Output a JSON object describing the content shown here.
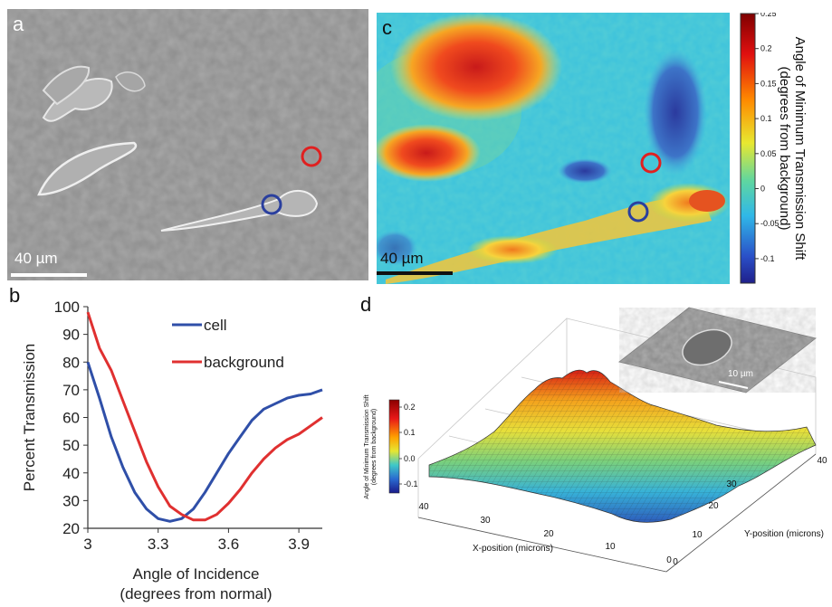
{
  "panel_a": {
    "label": "a",
    "scale_bar": "40 µm",
    "circle_colors": [
      "#e02020",
      "#2a3f9e"
    ]
  },
  "panel_c": {
    "label": "c",
    "scale_bar": "40 µm",
    "colorbar": {
      "title_line1": "Angle of Minimum Transmission Shift",
      "title_line2": "(degrees from background)",
      "ticks": [
        "0.25",
        "0.2",
        "0.15",
        "0.1",
        "0.05",
        "0",
        "-0.05",
        "-0.1"
      ]
    }
  },
  "panel_d": {
    "label": "d",
    "inset_scale_bar": "10 µm",
    "colorbar": {
      "title_line1": "Angle of Minimum Transmission Shift",
      "title_line2": "(degrees from background)",
      "ticks": [
        "0.2",
        "0.1",
        "0.0",
        "-0.1"
      ]
    },
    "x_axis_label": "X-position (microns)",
    "y_axis_label": "Y-position (microns)",
    "x_ticks": [
      "40",
      "30",
      "20",
      "10",
      "0"
    ],
    "y_ticks": [
      "0",
      "10",
      "20",
      "30",
      "40"
    ]
  },
  "chart_data": {
    "type": "line",
    "panel_label": "b",
    "title": "",
    "xlabel": "Angle of Incidence",
    "xlabel_sub": "(degrees from normal)",
    "ylabel": "Percent Transmission",
    "xlim": [
      3.0,
      4.0
    ],
    "ylim": [
      20,
      100
    ],
    "xticks": [
      "3",
      "3.3",
      "3.6",
      "3.9"
    ],
    "xtick_values": [
      3.0,
      3.3,
      3.6,
      3.9
    ],
    "yticks": [
      "20",
      "30",
      "40",
      "50",
      "60",
      "70",
      "80",
      "90",
      "100"
    ],
    "ytick_values": [
      20,
      30,
      40,
      50,
      60,
      70,
      80,
      90,
      100
    ],
    "legend_position": "top-center",
    "series": [
      {
        "name": "cell",
        "color": "#2f4fa8",
        "x": [
          3.0,
          3.05,
          3.1,
          3.15,
          3.2,
          3.25,
          3.3,
          3.35,
          3.4,
          3.45,
          3.5,
          3.55,
          3.6,
          3.65,
          3.7,
          3.75,
          3.8,
          3.85,
          3.9,
          3.95,
          4.0
        ],
        "y": [
          80,
          67,
          53,
          42,
          33,
          27,
          23.5,
          22.5,
          23.5,
          27,
          33,
          40,
          47,
          53,
          59,
          63,
          65,
          67,
          68,
          68.5,
          70
        ]
      },
      {
        "name": "background",
        "color": "#e03030",
        "x": [
          3.0,
          3.05,
          3.1,
          3.15,
          3.2,
          3.25,
          3.3,
          3.35,
          3.4,
          3.45,
          3.5,
          3.55,
          3.6,
          3.65,
          3.7,
          3.75,
          3.8,
          3.85,
          3.9,
          3.95,
          4.0
        ],
        "y": [
          98,
          85,
          77,
          66,
          55,
          44,
          35,
          28,
          25,
          23,
          23,
          25,
          29,
          34,
          40,
          45,
          49,
          52,
          54,
          57,
          60
        ]
      }
    ]
  }
}
